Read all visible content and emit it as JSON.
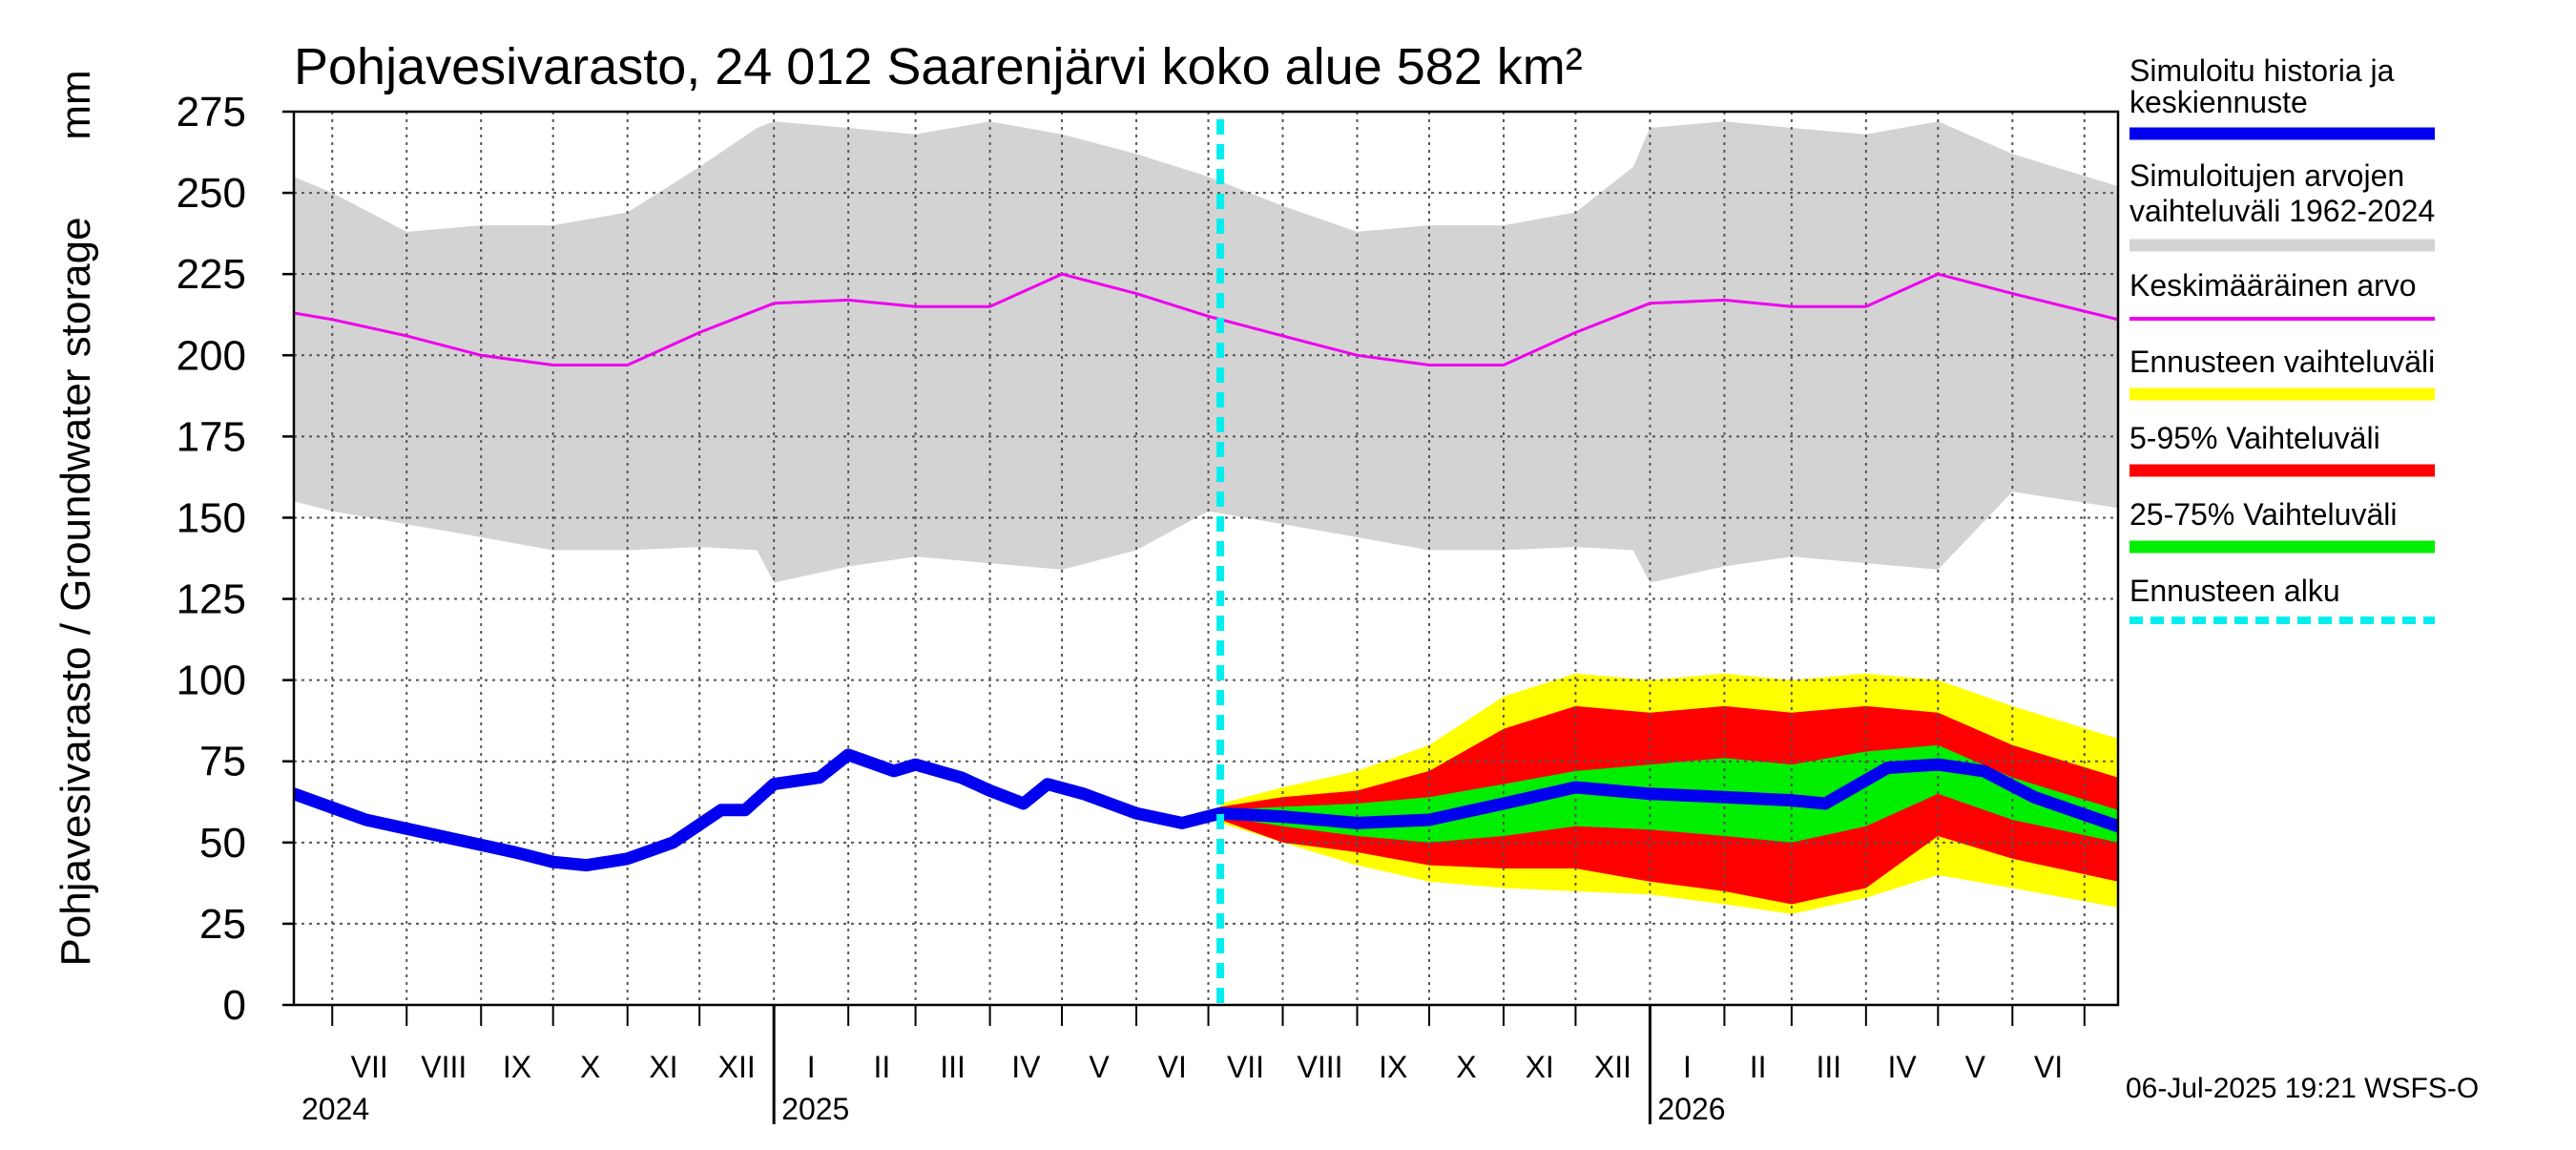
{
  "chart_data": {
    "type": "area",
    "title": "Pohjavesivarasto, 24 012 Saarenjärvi koko alue 582 km²",
    "ylabel": "Pohjavesivarasto / Groundwater storage",
    "yunit": "mm",
    "ylim": [
      0,
      275
    ],
    "yticks": [
      "0",
      "25",
      "50",
      "75",
      "100",
      "125",
      "150",
      "175",
      "200",
      "225",
      "250",
      "275"
    ],
    "xlim": [
      "2024-06-15",
      "2026-07-15"
    ],
    "month_labels": [
      "VII",
      "VIII",
      "IX",
      "X",
      "XI",
      "XII",
      "I",
      "II",
      "III",
      "IV",
      "V",
      "VI",
      "VII",
      "VIII",
      "IX",
      "X",
      "XI",
      "XII",
      "I",
      "II",
      "III",
      "IV",
      "V",
      "VI"
    ],
    "year_labels": [
      "2024",
      "2025",
      "2026"
    ],
    "forecast_start": "2025-07-06",
    "grid": true,
    "legend_position": "right",
    "colors": {
      "history": "#0000ee",
      "range": "#d3d3d3",
      "mean": "#ee00ee",
      "forecast_range": "#ffff00",
      "p5_95": "#ff0000",
      "p25_75": "#00ee00",
      "forecast_start": "#00eeee"
    },
    "series": [
      {
        "name": "Simuloitujen arvojen vaihteluväli 1962-2024",
        "x": [
          "2024-06-15",
          "2024-07-01",
          "2024-08-01",
          "2024-09-01",
          "2024-10-01",
          "2024-11-01",
          "2024-12-01",
          "2024-12-25",
          "2025-01-01",
          "2025-02-01",
          "2025-03-01",
          "2025-04-01",
          "2025-05-01",
          "2025-06-01",
          "2025-07-01",
          "2025-08-01",
          "2025-09-01",
          "2025-10-01",
          "2025-11-01",
          "2025-12-01",
          "2025-12-25",
          "2026-01-01",
          "2026-02-01",
          "2026-03-01",
          "2026-04-01",
          "2026-05-01",
          "2026-06-01",
          "2026-07-15"
        ],
        "upper": [
          255,
          250,
          238,
          240,
          240,
          244,
          258,
          270,
          272,
          270,
          268,
          272,
          268,
          262,
          255,
          246,
          238,
          240,
          240,
          244,
          258,
          270,
          272,
          270,
          268,
          272,
          262,
          252
        ],
        "lower": [
          155,
          152,
          148,
          144,
          140,
          140,
          141,
          140,
          130,
          135,
          138,
          136,
          134,
          140,
          152,
          148,
          144,
          140,
          140,
          141,
          140,
          130,
          135,
          138,
          136,
          134,
          158,
          153
        ]
      },
      {
        "name": "Keskimääräinen arvo",
        "x": [
          "2024-06-15",
          "2024-07-01",
          "2024-08-01",
          "2024-09-01",
          "2024-10-01",
          "2024-11-01",
          "2024-12-01",
          "2025-01-01",
          "2025-02-01",
          "2025-03-01",
          "2025-04-01",
          "2025-05-01",
          "2025-06-01",
          "2025-07-01",
          "2025-08-01",
          "2025-09-01",
          "2025-10-01",
          "2025-11-01",
          "2025-12-01",
          "2026-01-01",
          "2026-02-01",
          "2026-03-01",
          "2026-04-01",
          "2026-05-01",
          "2026-06-01",
          "2026-07-15"
        ],
        "values": [
          213,
          211,
          206,
          200,
          197,
          197,
          207,
          216,
          217,
          215,
          215,
          225,
          219,
          212,
          206,
          200,
          197,
          197,
          207,
          216,
          217,
          215,
          215,
          225,
          219,
          211
        ]
      },
      {
        "name": "Simuloitu historia ja keskiennuste",
        "x": [
          "2024-06-15",
          "2024-07-15",
          "2024-08-15",
          "2024-09-15",
          "2024-10-01",
          "2024-10-15",
          "2024-11-01",
          "2024-11-20",
          "2024-12-10",
          "2024-12-20",
          "2025-01-01",
          "2025-01-20",
          "2025-02-01",
          "2025-02-20",
          "2025-03-01",
          "2025-03-20",
          "2025-04-01",
          "2025-04-15",
          "2025-04-25",
          "2025-05-10",
          "2025-06-01",
          "2025-06-20",
          "2025-07-06",
          "2025-08-01",
          "2025-09-01",
          "2025-10-01",
          "2025-11-01",
          "2025-12-01",
          "2026-01-01",
          "2026-02-01",
          "2026-03-01",
          "2026-03-15",
          "2026-04-10",
          "2026-05-01",
          "2026-05-20",
          "2026-06-10",
          "2026-07-15"
        ],
        "values": [
          65,
          57,
          52,
          47,
          44,
          43,
          45,
          50,
          60,
          60,
          68,
          70,
          77,
          72,
          74,
          70,
          66,
          62,
          68,
          65,
          59,
          56,
          59,
          58,
          56,
          57,
          62,
          67,
          65,
          64,
          63,
          62,
          73,
          74,
          72,
          64,
          55
        ]
      },
      {
        "name": "Ennusteen vaihteluväli",
        "x": [
          "2025-07-06",
          "2025-08-01",
          "2025-09-01",
          "2025-10-01",
          "2025-11-01",
          "2025-12-01",
          "2026-01-01",
          "2026-02-01",
          "2026-03-01",
          "2026-04-01",
          "2026-05-01",
          "2026-06-01",
          "2026-07-15"
        ],
        "upper": [
          62,
          67,
          72,
          80,
          95,
          102,
          100,
          102,
          100,
          102,
          100,
          92,
          82
        ],
        "lower": [
          56,
          50,
          43,
          38,
          36,
          35,
          34,
          31,
          28,
          33,
          40,
          36,
          30
        ]
      },
      {
        "name": "5-95% Vaihteluväli",
        "x": [
          "2025-07-06",
          "2025-08-01",
          "2025-09-01",
          "2025-10-01",
          "2025-11-01",
          "2025-12-01",
          "2026-01-01",
          "2026-02-01",
          "2026-03-01",
          "2026-04-01",
          "2026-05-01",
          "2026-06-01",
          "2026-07-15"
        ],
        "upper": [
          61,
          64,
          66,
          72,
          85,
          92,
          90,
          92,
          90,
          92,
          90,
          80,
          70
        ],
        "lower": [
          57,
          50,
          47,
          43,
          42,
          42,
          38,
          35,
          31,
          36,
          52,
          45,
          38
        ]
      },
      {
        "name": "25-75% Vaihteluväli",
        "x": [
          "2025-07-06",
          "2025-08-01",
          "2025-09-01",
          "2025-10-01",
          "2025-11-01",
          "2025-12-01",
          "2026-01-01",
          "2026-02-01",
          "2026-03-01",
          "2026-04-01",
          "2026-05-01",
          "2026-06-01",
          "2026-07-15"
        ],
        "upper": [
          60,
          61,
          62,
          64,
          68,
          72,
          74,
          76,
          74,
          78,
          80,
          70,
          60
        ],
        "lower": [
          58,
          55,
          52,
          50,
          52,
          55,
          54,
          52,
          50,
          55,
          65,
          57,
          50
        ]
      }
    ],
    "legend": [
      {
        "label": "Simuloitu historia ja keskiennuste",
        "lines": [
          "Simuloitu historia ja",
          "keskiennuste"
        ],
        "color": "#0000ee",
        "style": "solid"
      },
      {
        "label": "Simuloitujen arvojen vaihteluväli 1962-2024",
        "lines": [
          "Simuloitujen arvojen",
          "vaihteluväli 1962-2024"
        ],
        "color": "#d3d3d3",
        "style": "solid"
      },
      {
        "label": "Keskimääräinen arvo",
        "lines": [
          "Keskimääräinen arvo"
        ],
        "color": "#ee00ee",
        "style": "thin"
      },
      {
        "label": "Ennusteen vaihteluväli",
        "lines": [
          "Ennusteen vaihteluväli"
        ],
        "color": "#ffff00",
        "style": "solid"
      },
      {
        "label": "5-95% Vaihteluväli",
        "lines": [
          "5-95% Vaihteluväli"
        ],
        "color": "#ff0000",
        "style": "solid"
      },
      {
        "label": "25-75% Vaihteluväli",
        "lines": [
          "25-75% Vaihteluväli"
        ],
        "color": "#00ee00",
        "style": "solid"
      },
      {
        "label": "Ennusteen alku",
        "lines": [
          "Ennusteen alku"
        ],
        "color": "#00eeee",
        "style": "dashed"
      }
    ],
    "footer": "06-Jul-2025 19:21 WSFS-O"
  }
}
